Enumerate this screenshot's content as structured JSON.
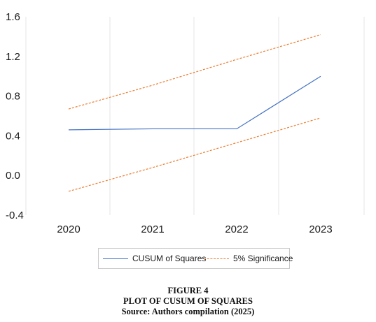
{
  "chart_data": {
    "type": "line",
    "x": [
      "2020",
      "2021",
      "2022",
      "2023"
    ],
    "series": [
      {
        "name": "CUSUM of Squares",
        "values": [
          0.46,
          0.47,
          0.47,
          1.0
        ],
        "color": "#4472c4",
        "style": "solid"
      },
      {
        "name": "5% Significance",
        "values": [
          0.67,
          0.91,
          1.17,
          1.42
        ],
        "color": "#ed7d31",
        "style": "dashed"
      },
      {
        "name": "",
        "values": [
          -0.16,
          0.08,
          0.33,
          0.58
        ],
        "color": "#ed7d31",
        "style": "dashed"
      }
    ],
    "yticks": [
      "1.6",
      "1.2",
      "0.8",
      "0.4",
      "0.0",
      "-0.4"
    ],
    "ylim": [
      -0.4,
      1.6
    ],
    "grid": "vertical",
    "legend_placement": "bottom"
  },
  "legend": {
    "items": [
      {
        "label": "CUSUM of Squares",
        "style": "solid",
        "color": "#4472c4"
      },
      {
        "label": "5% Significance",
        "style": "dashed",
        "color": "#ed7d31"
      }
    ]
  },
  "caption": {
    "figure": "FIGURE 4",
    "title": "PLOT OF CUSUM OF SQUARES",
    "source": "Source: Authors compilation (2025)"
  }
}
